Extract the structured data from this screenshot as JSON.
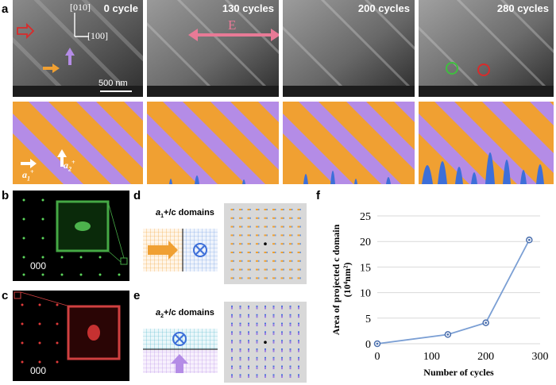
{
  "panel_labels": {
    "a": "a",
    "b": "b",
    "c": "c",
    "d": "d",
    "e": "e",
    "f": "f"
  },
  "tem": {
    "captions": [
      "0 cycle",
      "130 cycles",
      "200 cycles",
      "280 cycles"
    ],
    "direction_010": "[010]",
    "direction_100": "[100]",
    "scale_bar": "500 nm",
    "field_label": "E"
  },
  "schematic": {
    "a1_label": "a",
    "a1_sub": "1",
    "a2_label": "a",
    "a2_sub": "2",
    "sup": "+"
  },
  "diffraction": {
    "b_origin": "000",
    "c_origin": "000"
  },
  "domains": {
    "d_title_a": "a",
    "d_title_sub": "1",
    "d_title_rest": "+/c domains",
    "e_title_a": "a",
    "e_title_sub": "2",
    "e_title_rest": "+/c domains"
  },
  "chart_data": {
    "type": "line",
    "x": [
      0,
      130,
      200,
      280
    ],
    "values": [
      0,
      1.8,
      4.1,
      20.3
    ],
    "xlabel": "Number of cycles",
    "ylabel": "Area of projected c domain",
    "ylabel_unit": "(10⁴nm²)",
    "xlim": [
      0,
      300
    ],
    "ylim": [
      0,
      25
    ],
    "xticks": [
      0,
      100,
      200,
      300
    ],
    "yticks": [
      0,
      5,
      10,
      15,
      20,
      25
    ],
    "grid": "horizontal",
    "color": "#7b9fd4"
  }
}
